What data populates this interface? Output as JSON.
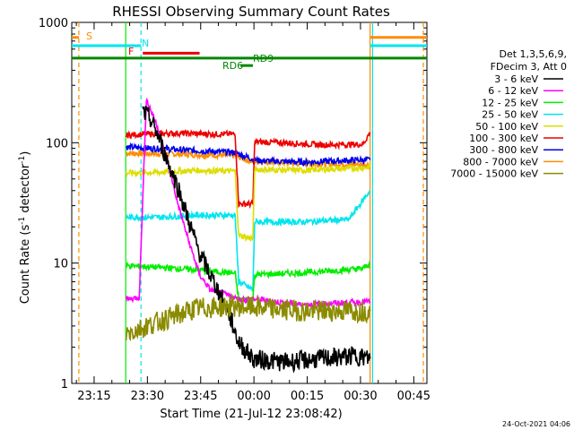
{
  "chart_data": {
    "type": "line",
    "title": "RHESSI Observing Summary Count Rates",
    "xlabel": "Start Time (21-Jul-12 23:08:42)",
    "ylabel": "Count Rate (s",
    "ylabel_sup": "-1",
    "ylabel_mid": " detector",
    "ylabel_sup2": "-1",
    "ylabel_end": ")",
    "y_log": true,
    "ylim": [
      1,
      1000
    ],
    "xlim": [
      0,
      100
    ],
    "x_ticks": [
      {
        "label": "23:15",
        "x": 6.3
      },
      {
        "label": "23:30",
        "x": 21.3
      },
      {
        "label": "23:45",
        "x": 36.3
      },
      {
        "label": "00:00",
        "x": 51.3
      },
      {
        "label": "00:15",
        "x": 66.3
      },
      {
        "label": "00:30",
        "x": 81.3
      },
      {
        "label": "00:45",
        "x": 96.3
      }
    ],
    "y_ticks": [
      {
        "label": "1",
        "y": 1
      },
      {
        "label": "10",
        "y": 10
      },
      {
        "label": "100",
        "y": 100
      },
      {
        "label": "1000",
        "y": 1000
      }
    ],
    "legend": {
      "placement": "right",
      "header": [
        "Det 1,3,5,6,9,",
        "FDecim 3, Att 0"
      ],
      "entries": [
        {
          "label": "3 - 6 keV",
          "color": "#000000"
        },
        {
          "label": "6 - 12 keV",
          "color": "#ff00ff"
        },
        {
          "label": "12 - 25 keV",
          "color": "#00ee00"
        },
        {
          "label": "25 - 50 keV",
          "color": "#00e5ee"
        },
        {
          "label": "50 - 100 keV",
          "color": "#dddd00"
        },
        {
          "label": "100 - 300 keV",
          "color": "#ee0000"
        },
        {
          "label": "300 - 800 keV",
          "color": "#0000ee"
        },
        {
          "label": "800 - 7000 keV",
          "color": "#ff8c00"
        },
        {
          "label": "7000 - 15000 keV",
          "color": "#8b8b00"
        }
      ]
    },
    "annotations": [
      {
        "label": "S",
        "color": "#ff8c00"
      },
      {
        "label": "N",
        "color": "#00e5ee"
      },
      {
        "label": "F",
        "color": "#ee0000"
      },
      {
        "label": "RD6",
        "color": "#008800"
      },
      {
        "label": "RD9",
        "color": "#008800"
      }
    ],
    "flag_bars": [
      {
        "name": "S",
        "color": "#ff8c00",
        "y": 750,
        "x0": 0,
        "x1": 2
      },
      {
        "name": "N",
        "color": "#00e5ee",
        "y": 640,
        "x0": 0,
        "x1": 19.5
      },
      {
        "name": "F",
        "color": "#ee0000",
        "y": 555,
        "x0": 20,
        "x1": 36
      },
      {
        "name": "RD9",
        "color": "#008800",
        "y": 505,
        "x0": 0,
        "x1": 100
      },
      {
        "name": "RD6",
        "color": "#008800",
        "y": 438,
        "x0": 47.5,
        "x1": 51
      },
      {
        "name": "S2",
        "color": "#ff8c00",
        "y": 750,
        "x0": 84,
        "x1": 100
      },
      {
        "name": "N2",
        "color": "#00e5ee",
        "y": 640,
        "x0": 84,
        "x1": 100
      }
    ],
    "vlines": [
      {
        "x": 2.0,
        "color": "#ff8c00",
        "dashed": true
      },
      {
        "x": 19.5,
        "color": "#00e5ee",
        "dashed": true
      },
      {
        "x": 15.2,
        "color": "#00ee00",
        "dashed": false
      },
      {
        "x": 84.0,
        "color": "#ff8c00",
        "dashed": false
      },
      {
        "x": 84.7,
        "color": "#00e5ee",
        "dashed": false
      },
      {
        "x": 99.0,
        "color": "#ff8c00",
        "dashed": true
      }
    ],
    "series": [
      {
        "name": "800 - 7000 keV",
        "color": "#ff8c00",
        "points": [
          [
            15.3,
            82
          ],
          [
            25,
            81
          ],
          [
            40,
            79
          ],
          [
            46,
            78
          ],
          [
            51,
            69
          ],
          [
            53,
            70
          ],
          [
            65,
            67
          ],
          [
            82,
            66
          ],
          [
            84,
            66
          ]
        ]
      },
      {
        "name": "300 - 800 keV",
        "color": "#0000ee",
        "points": [
          [
            15.3,
            92
          ],
          [
            25,
            89
          ],
          [
            35,
            86
          ],
          [
            46,
            83
          ],
          [
            51,
            73
          ],
          [
            53,
            71
          ],
          [
            65,
            69
          ],
          [
            82,
            72
          ],
          [
            84,
            72
          ]
        ]
      },
      {
        "name": "100 - 300 keV",
        "color": "#ee0000",
        "points": [
          [
            15.3,
            115
          ],
          [
            20,
            118
          ],
          [
            30,
            120
          ],
          [
            40,
            118
          ],
          [
            46,
            118
          ],
          [
            47,
            31
          ],
          [
            51,
            31
          ],
          [
            51.5,
            102
          ],
          [
            60,
            100
          ],
          [
            70,
            96
          ],
          [
            82,
            97
          ],
          [
            84,
            122
          ]
        ]
      },
      {
        "name": "50 - 100 keV",
        "color": "#dddd00",
        "points": [
          [
            15.3,
            56
          ],
          [
            25,
            57
          ],
          [
            35,
            59
          ],
          [
            46,
            58
          ],
          [
            47,
            17
          ],
          [
            51,
            16
          ],
          [
            51.5,
            60
          ],
          [
            65,
            59
          ],
          [
            82,
            62
          ],
          [
            84,
            63
          ]
        ]
      },
      {
        "name": "25 - 50 keV",
        "color": "#00e5ee",
        "points": [
          [
            15.3,
            24
          ],
          [
            25,
            24
          ],
          [
            35,
            25
          ],
          [
            46,
            25
          ],
          [
            47,
            7
          ],
          [
            51,
            6
          ],
          [
            51.5,
            22
          ],
          [
            65,
            22
          ],
          [
            78,
            23
          ],
          [
            84,
            40
          ]
        ]
      },
      {
        "name": "12 - 25 keV",
        "color": "#00ee00",
        "points": [
          [
            15.3,
            9.5
          ],
          [
            25,
            9.2
          ],
          [
            35,
            8.8
          ],
          [
            46,
            8.2
          ],
          [
            47,
            5
          ],
          [
            51,
            5
          ],
          [
            51.5,
            8
          ],
          [
            65,
            8.3
          ],
          [
            82,
            9
          ],
          [
            84,
            10
          ]
        ]
      },
      {
        "name": "6 - 12 keV",
        "color": "#ff00ff",
        "points": [
          [
            15.3,
            5
          ],
          [
            19,
            5.2
          ],
          [
            21,
            230
          ],
          [
            24,
            140
          ],
          [
            27,
            70
          ],
          [
            30,
            30
          ],
          [
            33,
            15
          ],
          [
            36,
            8
          ],
          [
            39,
            6
          ],
          [
            43,
            5.5
          ],
          [
            47,
            5
          ],
          [
            51,
            5
          ],
          [
            51.5,
            5
          ],
          [
            65,
            4.5
          ],
          [
            84,
            4.8
          ]
        ]
      },
      {
        "name": "3 - 6 keV",
        "color": "#000000",
        "points": [
          [
            20,
            180
          ],
          [
            22,
            160
          ],
          [
            24,
            120
          ],
          [
            27,
            70
          ],
          [
            30,
            42
          ],
          [
            33,
            22
          ],
          [
            36,
            12
          ],
          [
            40,
            7
          ],
          [
            44,
            4
          ],
          [
            47,
            2.2
          ],
          [
            51,
            1.6
          ],
          [
            60,
            1.5
          ],
          [
            70,
            1.6
          ],
          [
            80,
            1.7
          ],
          [
            84,
            1.6
          ]
        ]
      },
      {
        "name": "7000 - 15000 keV",
        "color": "#8b8b00",
        "points": [
          [
            15.3,
            2.6
          ],
          [
            25,
            3.3
          ],
          [
            35,
            4.2
          ],
          [
            46,
            4.4
          ],
          [
            55,
            4.2
          ],
          [
            65,
            4.0
          ],
          [
            84,
            4.0
          ]
        ]
      }
    ]
  },
  "footer": {
    "date_stamp": "24-Oct-2021 04:06"
  }
}
